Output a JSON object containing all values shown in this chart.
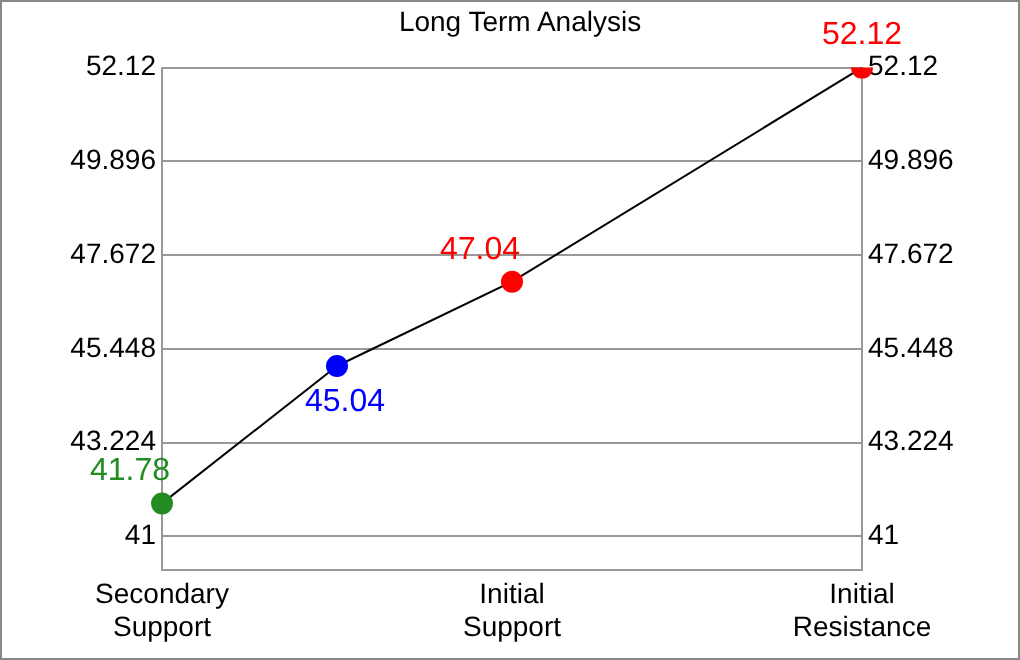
{
  "chart_data": {
    "type": "line",
    "title": "Long Term Analysis",
    "categories": [
      "Secondary Support",
      null,
      "Initial Support",
      null,
      "Initial Resistance"
    ],
    "series": [
      {
        "color": "#000000",
        "colors": [
          "#228b22",
          "#0000ff",
          "#ff0000",
          null,
          "#ff0000"
        ],
        "values": [
          41.78,
          45.04,
          47.04,
          null,
          52.12
        ]
      }
    ],
    "ylim": [
      40.2,
      52.12
    ],
    "yticks": [
      41,
      43.224,
      45.448,
      47.672,
      49.896,
      52.12
    ],
    "y2lim": [
      40.2,
      52.12
    ],
    "y2ticks": [
      41,
      43.224,
      45.448,
      47.672,
      49.896,
      52.12
    ],
    "grid": "y",
    "marker": "circle",
    "data_labels": true
  }
}
